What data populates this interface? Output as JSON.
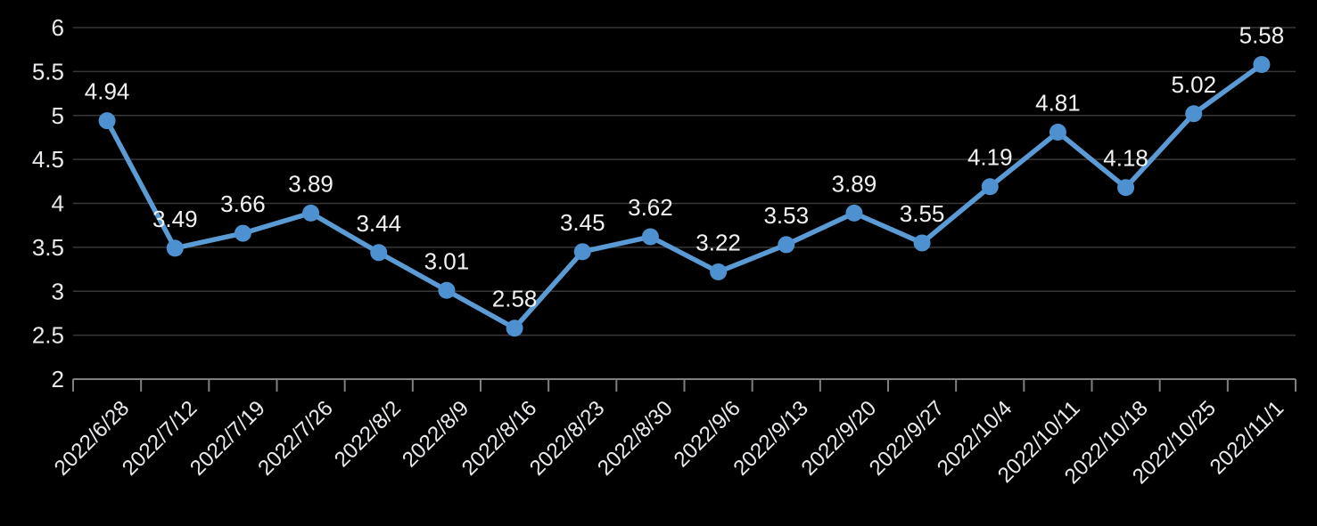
{
  "chart_data": {
    "type": "line",
    "title": "",
    "categories": [
      "2022/6/28",
      "2022/7/12",
      "2022/7/19",
      "2022/7/26",
      "2022/8/2",
      "2022/8/9",
      "2022/8/16",
      "2022/8/23",
      "2022/8/30",
      "2022/9/6",
      "2022/9/13",
      "2022/9/20",
      "2022/9/27",
      "2022/10/4",
      "2022/10/11",
      "2022/10/18",
      "2022/10/25",
      "2022/11/1"
    ],
    "series": [
      {
        "values": [
          4.94,
          3.49,
          3.66,
          3.89,
          3.44,
          3.01,
          2.58,
          3.45,
          3.62,
          3.22,
          3.53,
          3.89,
          3.55,
          4.19,
          4.81,
          4.18,
          5.02,
          5.58
        ]
      }
    ],
    "data_labels_visible": true,
    "xlabel": "",
    "ylabel": "",
    "ylim": [
      2,
      6
    ],
    "ytick_step": 0.5,
    "yticks": [
      6,
      5.5,
      5,
      4.5,
      4,
      3.5,
      3,
      2.5,
      2
    ],
    "grid": "horizontal",
    "legend_position": "none",
    "x_label_rotation_deg": -45,
    "colors": {
      "background": "#000000",
      "line": "#5B9BD5",
      "marker": "#4E91D1",
      "gridline": "#383838",
      "axis_line": "#7F7F7F",
      "data_label_text": "#F2F2F2",
      "axis_tick_text": "#E8EAED"
    }
  }
}
